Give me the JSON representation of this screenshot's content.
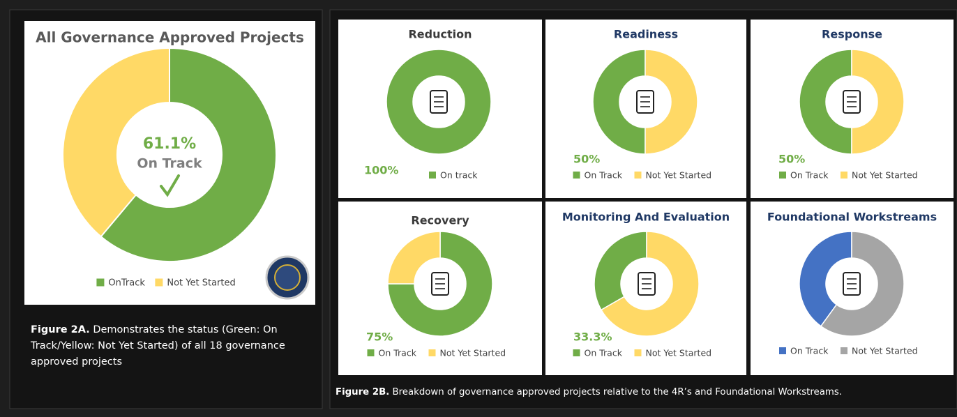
{
  "chart_data": [
    {
      "type": "pie",
      "title": "All Governance Approved Projects",
      "categories": [
        "OnTrack",
        "Not Yet Started"
      ],
      "values": [
        61.1,
        38.9
      ],
      "value_labels": [
        "61.1%",
        null
      ],
      "colors": [
        "#70ad47",
        "#ffd966"
      ],
      "center_label": "On Track",
      "clockwise": true
    },
    {
      "type": "pie",
      "title": "Reduction",
      "categories": [
        "On track"
      ],
      "values": [
        100
      ],
      "value_labels": [
        "100%"
      ],
      "colors": [
        "#70ad47"
      ],
      "clockwise": true
    },
    {
      "type": "pie",
      "title": "Readiness",
      "categories": [
        "On Track",
        "Not Yet Started"
      ],
      "values": [
        50,
        50
      ],
      "value_labels": [
        "50%",
        null
      ],
      "colors": [
        "#70ad47",
        "#ffd966"
      ],
      "clockwise": false
    },
    {
      "type": "pie",
      "title": "Response",
      "categories": [
        "On Track",
        "Not Yet Started"
      ],
      "values": [
        50,
        50
      ],
      "value_labels": [
        "50%",
        null
      ],
      "colors": [
        "#70ad47",
        "#ffd966"
      ],
      "clockwise": false
    },
    {
      "type": "pie",
      "title": "Recovery",
      "categories": [
        "On Track",
        "Not Yet Started"
      ],
      "values": [
        75,
        25
      ],
      "value_labels": [
        "75%",
        null
      ],
      "colors": [
        "#70ad47",
        "#ffd966"
      ],
      "clockwise": true
    },
    {
      "type": "pie",
      "title": "Monitoring And Evaluation",
      "categories": [
        "On Track",
        "Not Yet Started"
      ],
      "values": [
        33.3,
        66.7
      ],
      "value_labels": [
        "33.3%",
        null
      ],
      "colors": [
        "#70ad47",
        "#ffd966"
      ],
      "clockwise": false
    },
    {
      "type": "pie",
      "title": "Foundational Workstreams",
      "categories": [
        "On Track",
        "Not Yet Started"
      ],
      "values": [
        40,
        60
      ],
      "colors": [
        "#4472c4",
        "#a5a5a5"
      ],
      "clockwise": false
    }
  ],
  "captions": {
    "figure_2a": {
      "label": "Figure 2A.",
      "text": "Demonstrates the status (Green: On Track/Yellow: Not Yet Started) of all 18 governance approved projects"
    },
    "figure_2b": {
      "label": "Figure 2B.",
      "text": "Breakdown of governance approved projects relative to the 4R’s and Foundational Workstreams."
    }
  }
}
